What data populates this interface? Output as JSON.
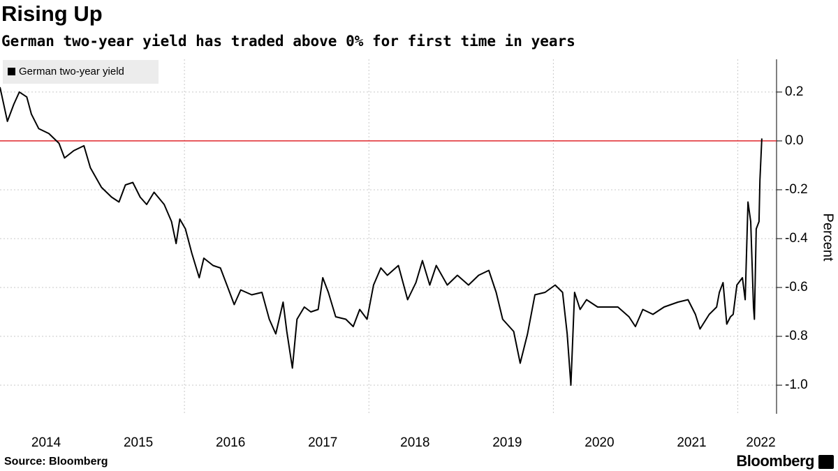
{
  "chart_data": {
    "type": "line",
    "title": "Rising Up",
    "subtitle": "German two-year yield has traded above 0% for first time in years",
    "ylabel": "Percent",
    "source": "Source: Bloomberg",
    "brand": "Bloomberg",
    "legend": "top-left",
    "grid": true,
    "ref_line": {
      "value": 0,
      "color": "#e0262b"
    },
    "xlim": [
      2014,
      2022.42
    ],
    "ylim": [
      -1.117,
      0.334
    ],
    "xticks": [
      {
        "value": 2014.5,
        "label": "2014"
      },
      {
        "value": 2015.5,
        "label": "2015"
      },
      {
        "value": 2016.5,
        "label": "2016"
      },
      {
        "value": 2017.5,
        "label": "2017"
      },
      {
        "value": 2018.5,
        "label": "2018"
      },
      {
        "value": 2019.5,
        "label": "2019"
      },
      {
        "value": 2020.5,
        "label": "2020"
      },
      {
        "value": 2021.5,
        "label": "2021"
      },
      {
        "value": 2022.25,
        "label": "2022"
      }
    ],
    "xgrid": [
      2016,
      2018,
      2020,
      2022
    ],
    "yticks": [
      0.2,
      {
        "value": 0,
        "label": "0.0"
      },
      -0.2,
      -0.4,
      -0.6,
      -0.8,
      {
        "value": -1,
        "label": "-1.0"
      }
    ],
    "x": [
      2014.0,
      2014.08,
      2014.15,
      2014.21,
      2014.29,
      2014.34,
      2014.42,
      2014.53,
      2014.64,
      2014.7,
      2014.8,
      2014.91,
      2014.98,
      2015.1,
      2015.21,
      2015.29,
      2015.36,
      2015.44,
      2015.52,
      2015.59,
      2015.67,
      2015.78,
      2015.86,
      2015.91,
      2015.95,
      2016.01,
      2016.08,
      2016.16,
      2016.21,
      2016.31,
      2016.39,
      2016.46,
      2016.54,
      2016.61,
      2016.73,
      2016.84,
      2016.92,
      2016.99,
      2017.07,
      2017.11,
      2017.17,
      2017.22,
      2017.3,
      2017.37,
      2017.45,
      2017.5,
      2017.56,
      2017.64,
      2017.75,
      2017.83,
      2017.9,
      2017.98,
      2018.05,
      2018.13,
      2018.2,
      2018.32,
      2018.42,
      2018.51,
      2018.58,
      2018.66,
      2018.73,
      2018.85,
      2018.96,
      2019.08,
      2019.19,
      2019.3,
      2019.38,
      2019.45,
      2019.57,
      2019.64,
      2019.72,
      2019.8,
      2019.91,
      2020.02,
      2020.1,
      2020.15,
      2020.19,
      2020.23,
      2020.29,
      2020.36,
      2020.48,
      2020.59,
      2020.7,
      2020.82,
      2020.89,
      2020.97,
      2021.08,
      2021.2,
      2021.35,
      2021.46,
      2021.54,
      2021.59,
      2021.69,
      2021.77,
      2021.8,
      2021.84,
      2021.88,
      2021.92,
      2021.95,
      2021.99,
      2022.05,
      2022.08,
      2022.11,
      2022.14,
      2022.17,
      2022.18,
      2022.2,
      2022.23,
      2022.24,
      2022.26
    ],
    "series": [
      {
        "name": "German two-year yield",
        "color": "#000000",
        "values": [
          0.22,
          0.08,
          0.15,
          0.2,
          0.18,
          0.11,
          0.05,
          0.03,
          -0.01,
          -0.07,
          -0.04,
          -0.02,
          -0.11,
          -0.19,
          -0.23,
          -0.25,
          -0.18,
          -0.17,
          -0.23,
          -0.26,
          -0.21,
          -0.26,
          -0.33,
          -0.42,
          -0.32,
          -0.36,
          -0.46,
          -0.56,
          -0.48,
          -0.51,
          -0.52,
          -0.59,
          -0.67,
          -0.61,
          -0.63,
          -0.62,
          -0.73,
          -0.79,
          -0.66,
          -0.78,
          -0.93,
          -0.73,
          -0.68,
          -0.7,
          -0.69,
          -0.56,
          -0.62,
          -0.72,
          -0.73,
          -0.76,
          -0.69,
          -0.73,
          -0.59,
          -0.52,
          -0.55,
          -0.51,
          -0.65,
          -0.58,
          -0.49,
          -0.59,
          -0.51,
          -0.59,
          -0.55,
          -0.59,
          -0.55,
          -0.53,
          -0.62,
          -0.73,
          -0.78,
          -0.91,
          -0.79,
          -0.63,
          -0.62,
          -0.59,
          -0.62,
          -0.79,
          -1.0,
          -0.62,
          -0.69,
          -0.65,
          -0.68,
          -0.68,
          -0.68,
          -0.72,
          -0.76,
          -0.69,
          -0.71,
          -0.68,
          -0.66,
          -0.65,
          -0.71,
          -0.77,
          -0.71,
          -0.68,
          -0.62,
          -0.58,
          -0.75,
          -0.72,
          -0.71,
          -0.59,
          -0.56,
          -0.65,
          -0.25,
          -0.33,
          -0.68,
          -0.73,
          -0.36,
          -0.33,
          -0.16,
          0.01
        ]
      }
    ]
  }
}
